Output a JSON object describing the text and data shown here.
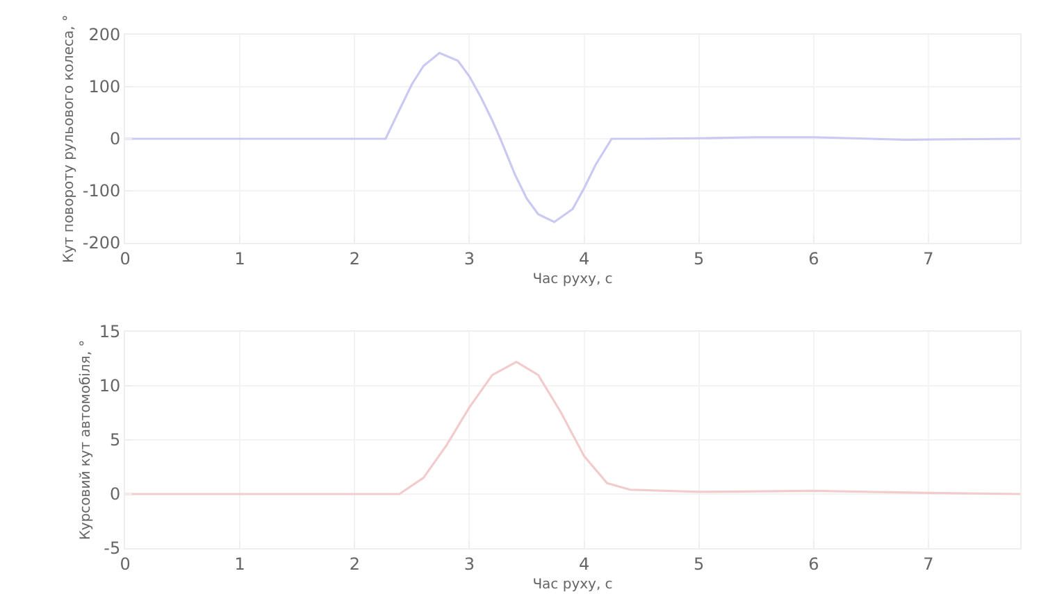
{
  "chart_data": [
    {
      "type": "line",
      "xlabel": "Час руху, с",
      "ylabel": "Кут повороту рульового колеса, °",
      "xlim": [
        0,
        7.8
      ],
      "xticks": [
        0,
        1,
        2,
        3,
        4,
        5,
        6,
        7
      ],
      "ylim": [
        -200,
        200
      ],
      "yticks": [
        -200,
        -100,
        0,
        100,
        200
      ],
      "grid": true,
      "series": [
        {
          "color": "#c9c9f2",
          "x": [
            0,
            1,
            2,
            2.27,
            2.4,
            2.5,
            2.6,
            2.74,
            2.9,
            3.0,
            3.1,
            3.2,
            3.27,
            3.4,
            3.5,
            3.6,
            3.74,
            3.9,
            4.0,
            4.1,
            4.24,
            4.5,
            5,
            5.5,
            6,
            6.5,
            6.8,
            7.2,
            7.8
          ],
          "values": [
            0,
            0,
            0,
            0,
            60,
            105,
            140,
            165,
            150,
            120,
            80,
            35,
            0,
            -70,
            -115,
            -145,
            -160,
            -135,
            -95,
            -50,
            0,
            0,
            1,
            3,
            3,
            0,
            -2,
            -1,
            0
          ]
        }
      ]
    },
    {
      "type": "line",
      "xlabel": "Час руху, с",
      "ylabel": "Курсовий кут автомобіля, °",
      "xlim": [
        0,
        7.8
      ],
      "xticks": [
        0,
        1,
        2,
        3,
        4,
        5,
        6,
        7
      ],
      "ylim": [
        -5,
        15
      ],
      "yticks": [
        -5,
        0,
        5,
        10,
        15
      ],
      "grid": true,
      "series": [
        {
          "color": "#f2cccc",
          "x": [
            0,
            1,
            2,
            2.39,
            2.6,
            2.8,
            3.0,
            3.2,
            3.41,
            3.6,
            3.8,
            4.0,
            4.2,
            4.4,
            5,
            6,
            7,
            7.8
          ],
          "values": [
            0,
            0,
            0,
            0,
            1.5,
            4.5,
            8,
            11,
            12.2,
            11,
            7.5,
            3.5,
            1,
            0.4,
            0.2,
            0.3,
            0.1,
            0
          ]
        }
      ]
    }
  ]
}
